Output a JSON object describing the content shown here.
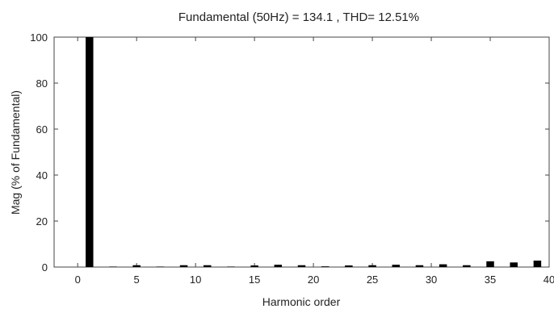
{
  "chart_data": {
    "type": "bar",
    "title": "Fundamental (50Hz) = 134.1 , THD= 12.51%",
    "xlabel": "Harmonic order",
    "ylabel": "Mag (% of Fundamental)",
    "xlim": [
      -2,
      40
    ],
    "ylim": [
      0,
      100
    ],
    "xticks": [
      0,
      5,
      10,
      15,
      20,
      25,
      30,
      35,
      40
    ],
    "yticks": [
      0,
      20,
      40,
      60,
      80,
      100
    ],
    "x": [
      1,
      3,
      5,
      7,
      9,
      11,
      13,
      15,
      17,
      19,
      21,
      23,
      25,
      27,
      29,
      31,
      33,
      35,
      37,
      39
    ],
    "values": [
      100,
      0.2,
      0.8,
      0.2,
      0.8,
      0.8,
      0.2,
      0.7,
      1.0,
      0.8,
      0.3,
      0.7,
      0.8,
      1.0,
      0.8,
      1.2,
      0.8,
      2.5,
      2.0,
      2.8
    ],
    "grid": false,
    "bar_color": "#000000",
    "axis_color": "#444444"
  }
}
